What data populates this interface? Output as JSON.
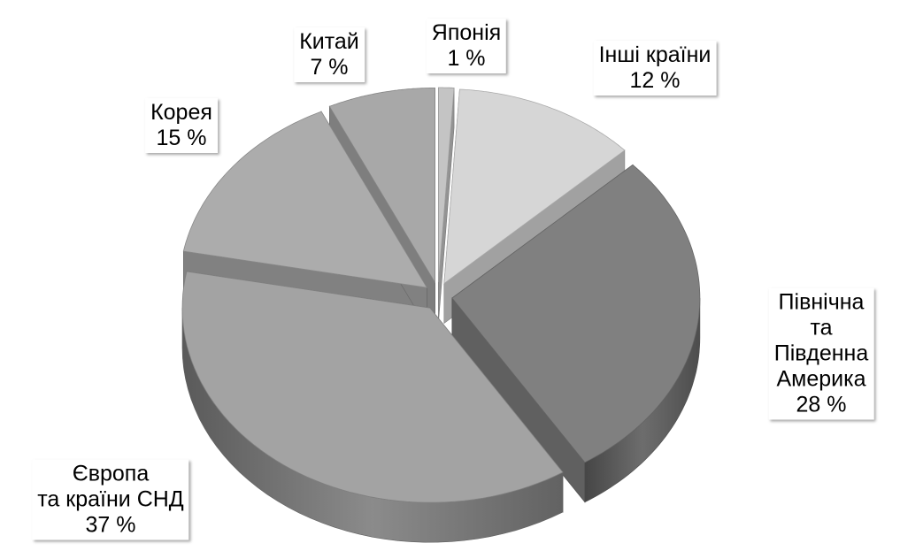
{
  "chart_data": {
    "type": "pie",
    "categories": [
      "Японія",
      "Інші країни",
      "Північна\nта Південна\nАмерика",
      "Європа\nта країни СНД",
      "Корея",
      "Китай"
    ],
    "values": [
      1,
      12,
      28,
      37,
      15,
      7
    ],
    "value_labels": [
      "1 %",
      "12 %",
      "28 %",
      "37 %",
      "15 %",
      "7 %"
    ],
    "colors": [
      "#c4c4c4",
      "#d6d6d6",
      "#808080",
      "#a3a3a3",
      "#acacac",
      "#a8a8a8"
    ]
  }
}
